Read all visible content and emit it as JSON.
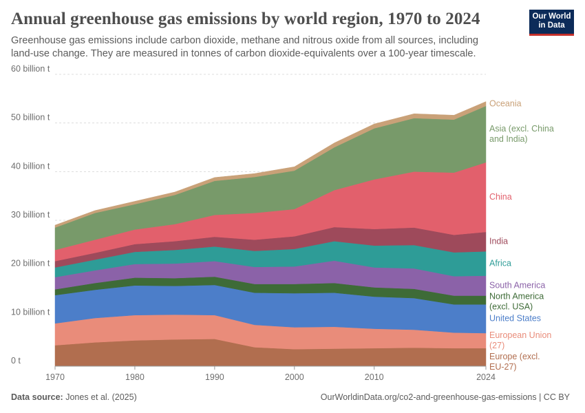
{
  "header": {
    "title": "Annual greenhouse gas emissions by world region, 1970 to 2024",
    "subtitle": "Greenhouse gas emissions include carbon dioxide, methane and nitrous oxide from all sources, including land-use change. They are measured in tonnes of carbon dioxide-equivalents over a 100-year timescale."
  },
  "logo": {
    "line1": "Our World",
    "line2": "in Data"
  },
  "footer": {
    "source_label": "Data source:",
    "source_value": "Jones et al. (2025)",
    "right": "OurWorldinData.org/co2-and-greenhouse-gas-emissions | CC BY"
  },
  "chart_data": {
    "type": "area",
    "stacked": true,
    "title": "Annual greenhouse gas emissions by world region, 1970 to 2024",
    "ylim": [
      0,
      60
    ],
    "y_ticks": [
      {
        "value": 0,
        "label": "0 t"
      },
      {
        "value": 10,
        "label": "10 billion t"
      },
      {
        "value": 20,
        "label": "20 billion t"
      },
      {
        "value": 30,
        "label": "30 billion t"
      },
      {
        "value": 40,
        "label": "40 billion t"
      },
      {
        "value": 50,
        "label": "50 billion t"
      },
      {
        "value": 60,
        "label": "60 billion t"
      }
    ],
    "x_ticks": [
      1970,
      1980,
      1990,
      2000,
      2010,
      2024
    ],
    "x": [
      1970,
      1975,
      1980,
      1985,
      1990,
      1995,
      2000,
      2005,
      2010,
      2015,
      2020,
      2024
    ],
    "grid": "horizontal",
    "legend": "right-inline",
    "series": [
      {
        "name": "Europe (excl. EU-27)",
        "color": "#b16e4f",
        "values": [
          4.3,
          4.9,
          5.3,
          5.5,
          5.6,
          3.9,
          3.5,
          3.6,
          3.7,
          3.8,
          3.7,
          3.7
        ]
      },
      {
        "name": "European Union (27)",
        "color": "#e98c7a",
        "values": [
          4.5,
          5.0,
          5.2,
          5.1,
          4.9,
          4.6,
          4.5,
          4.5,
          4.0,
          3.7,
          3.2,
          3.1
        ]
      },
      {
        "name": "United States",
        "color": "#4c7ec9",
        "values": [
          5.8,
          5.8,
          6.1,
          5.9,
          6.2,
          6.6,
          7.0,
          7.0,
          6.6,
          6.5,
          5.8,
          5.9
        ]
      },
      {
        "name": "North America (excl. USA)",
        "color": "#3e6b37",
        "values": [
          1.2,
          1.4,
          1.6,
          1.6,
          1.7,
          1.8,
          1.9,
          2.0,
          1.9,
          1.9,
          1.8,
          1.8
        ]
      },
      {
        "name": "South America",
        "color": "#8b62a8",
        "values": [
          2.5,
          2.6,
          2.8,
          3.0,
          3.2,
          3.5,
          3.6,
          4.6,
          4.1,
          4.2,
          4.0,
          4.1
        ]
      },
      {
        "name": "Africa",
        "color": "#2e9c97",
        "values": [
          2.0,
          2.2,
          2.5,
          2.8,
          3.0,
          3.3,
          3.6,
          4.0,
          4.5,
          4.8,
          4.9,
          5.0
        ]
      },
      {
        "name": "India",
        "color": "#9e4a5b",
        "values": [
          1.3,
          1.4,
          1.6,
          1.8,
          2.0,
          2.3,
          2.6,
          2.9,
          3.4,
          3.6,
          3.6,
          4.0
        ]
      },
      {
        "name": "China",
        "color": "#e2606c",
        "values": [
          2.3,
          2.7,
          3.0,
          3.5,
          4.5,
          5.5,
          5.6,
          7.6,
          10.2,
          11.5,
          12.8,
          14.3
        ]
      },
      {
        "name": "Asia (excl. China and India)",
        "color": "#789a6a",
        "values": [
          4.6,
          5.5,
          5.2,
          6.0,
          7.0,
          7.4,
          7.9,
          8.8,
          10.5,
          11.0,
          10.9,
          11.6
        ]
      },
      {
        "name": "Oceania",
        "color": "#c9a178",
        "values": [
          0.5,
          0.5,
          0.6,
          0.6,
          0.7,
          0.7,
          0.8,
          0.9,
          0.9,
          0.9,
          0.9,
          0.9
        ]
      }
    ],
    "legend_labels": [
      {
        "series": "Oceania",
        "lines": [
          "Oceania"
        ]
      },
      {
        "series": "Asia (excl. China and India)",
        "lines": [
          "Asia (excl. China",
          "and India)"
        ]
      },
      {
        "series": "China",
        "lines": [
          "China"
        ]
      },
      {
        "series": "India",
        "lines": [
          "India"
        ]
      },
      {
        "series": "Africa",
        "lines": [
          "Africa"
        ]
      },
      {
        "series": "South America",
        "lines": [
          "South America"
        ]
      },
      {
        "series": "North America (excl. USA)",
        "lines": [
          "North America",
          "(excl. USA)"
        ]
      },
      {
        "series": "United States",
        "lines": [
          "United States"
        ]
      },
      {
        "series": "European Union (27)",
        "lines": [
          "European Union",
          "(27)"
        ]
      },
      {
        "series": "Europe (excl. EU-27)",
        "lines": [
          "Europe (excl.",
          "EU-27)"
        ]
      }
    ]
  }
}
